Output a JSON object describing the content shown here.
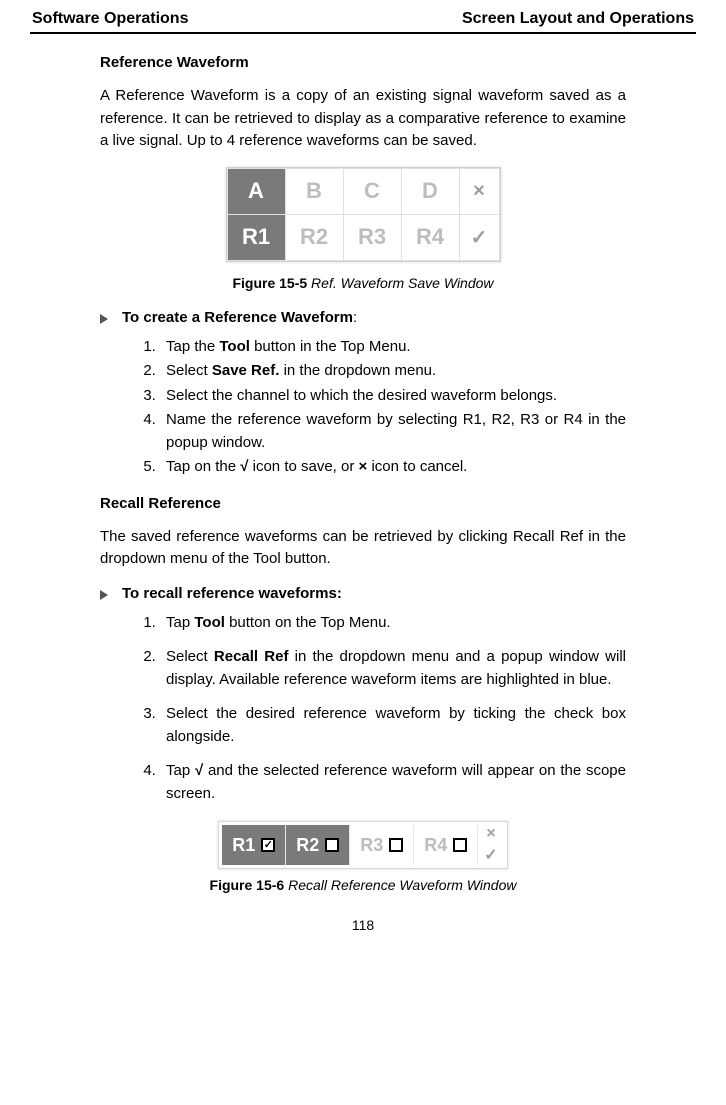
{
  "header": {
    "left": "Software Operations",
    "right": "Screen Layout and Operations"
  },
  "sec1": {
    "title": "Reference Waveform",
    "para": "A Reference Waveform is a copy of an existing signal waveform saved as a reference. It can be retrieved to display as a comparative reference to examine a live signal. Up to 4 reference waveforms can be saved."
  },
  "fig1": {
    "row1": {
      "a": "A",
      "b": "B",
      "c": "C",
      "d": "D",
      "x": "×"
    },
    "row2": {
      "r1": "R1",
      "r2": "R2",
      "r3": "R3",
      "r4": "R4",
      "ok": "✓"
    },
    "caption_b": "Figure 15-5",
    "caption_i": " Ref. Waveform Save Window"
  },
  "create": {
    "heading": "To create a Reference Waveform",
    "colon": ":",
    "s1a": "Tap the ",
    "s1b": "Tool",
    "s1c": " button in the Top Menu.",
    "s2a": "Select ",
    "s2b": "Save Ref.",
    "s2c": " in the dropdown menu.",
    "s3": "Select the channel to which the desired waveform belongs.",
    "s4": "Name the reference waveform by selecting R1, R2, R3 or R4 in the popup window.",
    "s5a": "Tap on the ",
    "s5b": "√",
    "s5c": " icon to save, or ",
    "s5d": "×",
    "s5e": " icon to cancel."
  },
  "sec2": {
    "title": "Recall Reference",
    "para": "The saved reference waveforms can be retrieved by clicking Recall Ref in the dropdown menu of the Tool button."
  },
  "recall": {
    "heading": "To recall reference waveforms:",
    "s1a": "Tap ",
    "s1b": "Tool",
    "s1c": " button on the Top Menu.",
    "s2a": "Select ",
    "s2b": "Recall Ref",
    "s2c": " in the dropdown menu and a popup window will display. Available reference waveform items are highlighted in blue.",
    "s3": "Select the desired reference waveform by ticking the check box alongside.",
    "s4a": "Tap ",
    "s4b": "√",
    "s4c": " and the selected reference waveform will appear on the scope screen."
  },
  "fig2": {
    "r1": "R1",
    "r2": "R2",
    "r3": "R3",
    "r4": "R4",
    "chk1": "✓",
    "x": "×",
    "ok": "✓",
    "caption_b": "Figure 15-6",
    "caption_i": " Recall Reference Waveform Window"
  },
  "pagenum": "118"
}
